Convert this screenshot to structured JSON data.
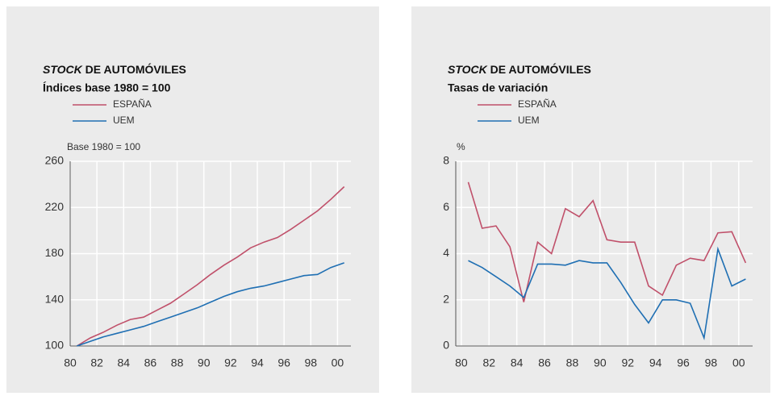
{
  "chart_data": [
    {
      "type": "line",
      "title_emphasis": "STOCK",
      "title": "DE AUTOMÓVILES",
      "subtitle": "Índices base 1980 = 100",
      "y_label": "Base 1980 = 100",
      "x": [
        1980.5,
        1981.5,
        1982.5,
        1983.5,
        1984.5,
        1985.5,
        1986.5,
        1987.5,
        1988.5,
        1989.5,
        1990.5,
        1991.5,
        1992.5,
        1993.5,
        1994.5,
        1995.5,
        1996.5,
        1997.5,
        1998.5,
        1999.5,
        2000.5
      ],
      "series": [
        {
          "name": "ESPAÑA",
          "color": "#c0506a",
          "values": [
            100,
            107,
            112,
            118,
            123,
            125,
            131,
            137,
            145,
            153,
            162,
            170,
            177,
            185,
            190,
            194,
            201,
            209,
            217,
            227,
            238
          ]
        },
        {
          "name": "UEM",
          "color": "#1f6fb3",
          "values": [
            100,
            104,
            108,
            111,
            114,
            117,
            121,
            125,
            129,
            133,
            138,
            143,
            147,
            150,
            152,
            155,
            158,
            161,
            162,
            168,
            172
          ]
        }
      ],
      "xlim": [
        1980,
        2001
      ],
      "xticks": [
        {
          "value": 1980,
          "label": "80"
        },
        {
          "value": 1982,
          "label": "82"
        },
        {
          "value": 1984,
          "label": "84"
        },
        {
          "value": 1986,
          "label": "86"
        },
        {
          "value": 1988,
          "label": "88"
        },
        {
          "value": 1990,
          "label": "90"
        },
        {
          "value": 1992,
          "label": "92"
        },
        {
          "value": 1994,
          "label": "94"
        },
        {
          "value": 1996,
          "label": "96"
        },
        {
          "value": 1998,
          "label": "98"
        },
        {
          "value": 2000,
          "label": "00"
        }
      ],
      "ylim": [
        100,
        260
      ],
      "yticks": [
        100,
        140,
        180,
        220,
        260
      ],
      "grid": true
    },
    {
      "type": "line",
      "title_emphasis": "STOCK",
      "title": "DE AUTOMÓVILES",
      "subtitle": "Tasas de variación",
      "y_label": "%",
      "x": [
        1980.5,
        1981.5,
        1982.5,
        1983.5,
        1984.5,
        1985.5,
        1986.5,
        1987.5,
        1988.5,
        1989.5,
        1990.5,
        1991.5,
        1992.5,
        1993.5,
        1994.5,
        1995.5,
        1996.5,
        1997.5,
        1998.5,
        1999.5,
        2000.5
      ],
      "series": [
        {
          "name": "ESPAÑA",
          "color": "#c0506a",
          "values": [
            7.1,
            5.1,
            5.2,
            4.3,
            1.9,
            4.5,
            4.0,
            5.95,
            5.6,
            6.3,
            4.6,
            4.5,
            4.5,
            2.6,
            2.2,
            3.5,
            3.8,
            3.7,
            4.9,
            4.95,
            3.6
          ]
        },
        {
          "name": "UEM",
          "color": "#1f6fb3",
          "values": [
            3.7,
            3.4,
            3.0,
            2.6,
            2.1,
            3.55,
            3.55,
            3.5,
            3.7,
            3.6,
            3.6,
            2.75,
            1.8,
            1.0,
            2.0,
            2.0,
            1.85,
            0.35,
            4.2,
            2.6,
            2.9
          ]
        }
      ],
      "xlim": [
        1979.6,
        2001
      ],
      "xticks": [
        {
          "value": 1980,
          "label": "80"
        },
        {
          "value": 1982,
          "label": "82"
        },
        {
          "value": 1984,
          "label": "84"
        },
        {
          "value": 1986,
          "label": "86"
        },
        {
          "value": 1988,
          "label": "88"
        },
        {
          "value": 1990,
          "label": "90"
        },
        {
          "value": 1992,
          "label": "92"
        },
        {
          "value": 1994,
          "label": "94"
        },
        {
          "value": 1996,
          "label": "96"
        },
        {
          "value": 1998,
          "label": "98"
        },
        {
          "value": 2000,
          "label": "00"
        }
      ],
      "ylim": [
        0,
        8
      ],
      "yticks": [
        0,
        2,
        4,
        6,
        8
      ],
      "grid": true
    }
  ]
}
